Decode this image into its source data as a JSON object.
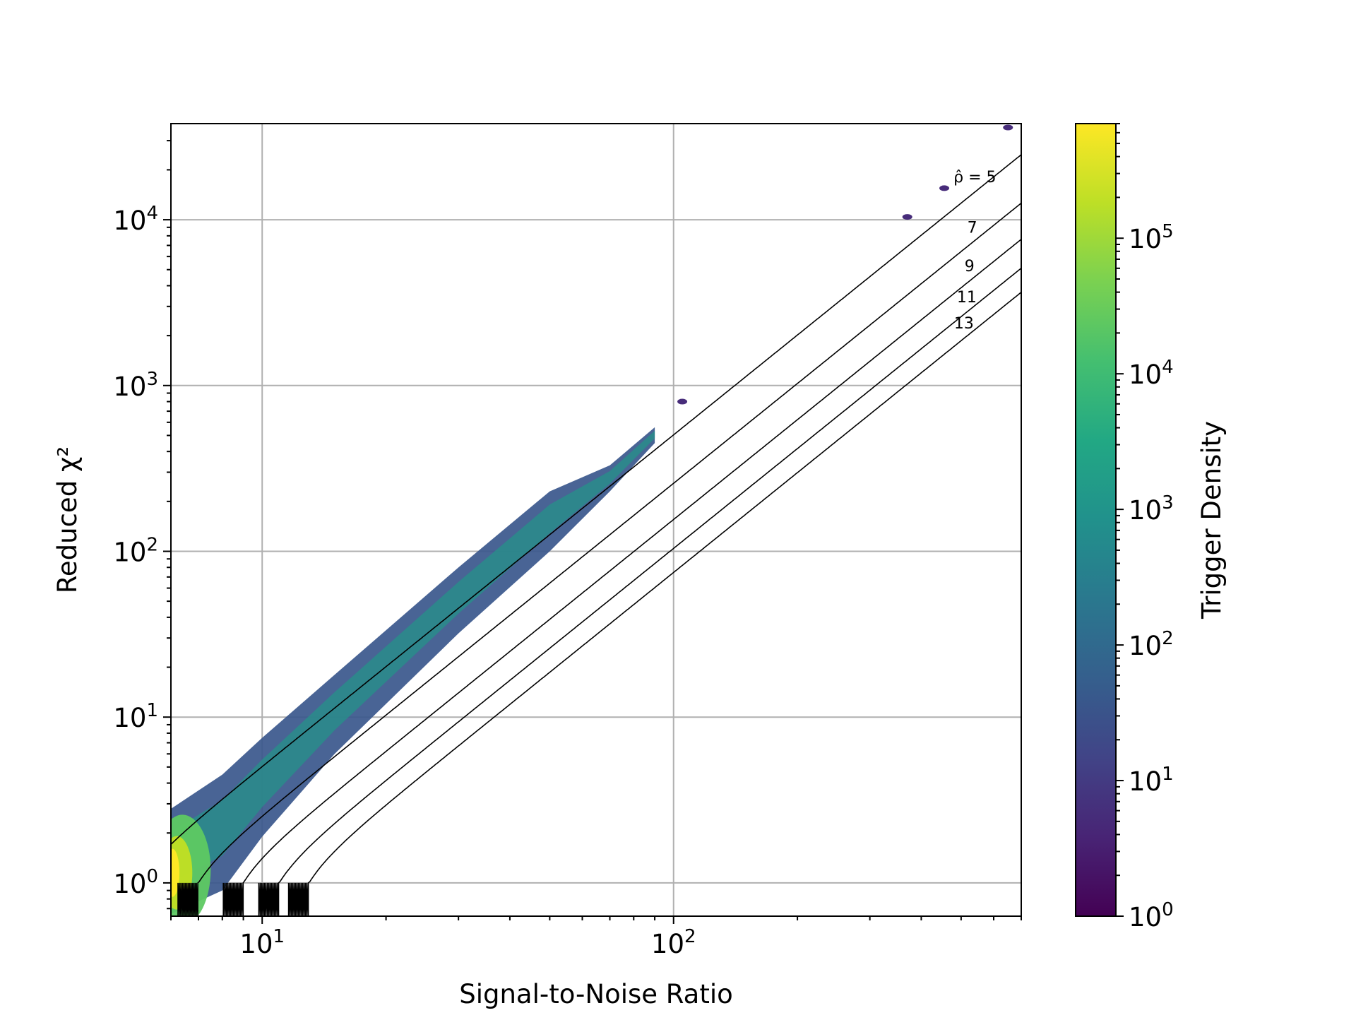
{
  "chart_data": {
    "type": "heatmap",
    "subtype": "hexbin",
    "title": "",
    "xlabel": "Signal-to-Noise Ratio",
    "ylabel": "Reduced χ²",
    "xscale": "log",
    "yscale": "log",
    "xlim": [
      6,
      700
    ],
    "ylim": [
      0.63,
      38000
    ],
    "grid": true,
    "x_ticks": [
      {
        "value": 10,
        "base": "10",
        "exp": "1"
      },
      {
        "value": 100,
        "base": "10",
        "exp": "2"
      }
    ],
    "y_ticks": [
      {
        "value": 1,
        "base": "10",
        "exp": "0"
      },
      {
        "value": 10,
        "base": "10",
        "exp": "1"
      },
      {
        "value": 100,
        "base": "10",
        "exp": "2"
      },
      {
        "value": 1000,
        "base": "10",
        "exp": "3"
      },
      {
        "value": 10000,
        "base": "10",
        "exp": "4"
      }
    ],
    "contours": [
      {
        "rho_hat": 5,
        "label": "ρ̂ = 5"
      },
      {
        "rho_hat": 7,
        "label": "7"
      },
      {
        "rho_hat": 9,
        "label": "9"
      },
      {
        "rho_hat": 11,
        "label": "11"
      },
      {
        "rho_hat": 13,
        "label": "13"
      }
    ],
    "density_band": [
      {
        "snr": 6.0,
        "chi2_low": 0.65,
        "chi2_high": 2.8
      },
      {
        "snr": 8.0,
        "chi2_low": 0.9,
        "chi2_high": 4.5
      },
      {
        "snr": 10.0,
        "chi2_low": 1.9,
        "chi2_high": 7.5
      },
      {
        "snr": 15.0,
        "chi2_low": 6.0,
        "chi2_high": 18.0
      },
      {
        "snr": 30.0,
        "chi2_low": 32.0,
        "chi2_high": 80.0
      },
      {
        "snr": 50.0,
        "chi2_low": 100.0,
        "chi2_high": 230.0
      },
      {
        "snr": 70.0,
        "chi2_low": 230.0,
        "chi2_high": 330.0
      },
      {
        "snr": 90.0,
        "chi2_low": 450.0,
        "chi2_high": 560.0
      }
    ],
    "outlier_clusters": [
      {
        "snr": 105,
        "chi2": 800
      },
      {
        "snr": 370,
        "chi2": 10400
      },
      {
        "snr": 455,
        "chi2": 15500
      },
      {
        "snr": 650,
        "chi2": 36000
      }
    ],
    "colorbar": {
      "label": "Trigger Density",
      "scale": "log",
      "range": [
        1,
        700000
      ],
      "colormap": "viridis",
      "ticks": [
        {
          "value": 1,
          "base": "10",
          "exp": "0"
        },
        {
          "value": 10,
          "base": "10",
          "exp": "1"
        },
        {
          "value": 100,
          "base": "10",
          "exp": "2"
        },
        {
          "value": 1000,
          "base": "10",
          "exp": "3"
        },
        {
          "value": 10000,
          "base": "10",
          "exp": "4"
        },
        {
          "value": 100000,
          "base": "10",
          "exp": "5"
        }
      ]
    }
  }
}
